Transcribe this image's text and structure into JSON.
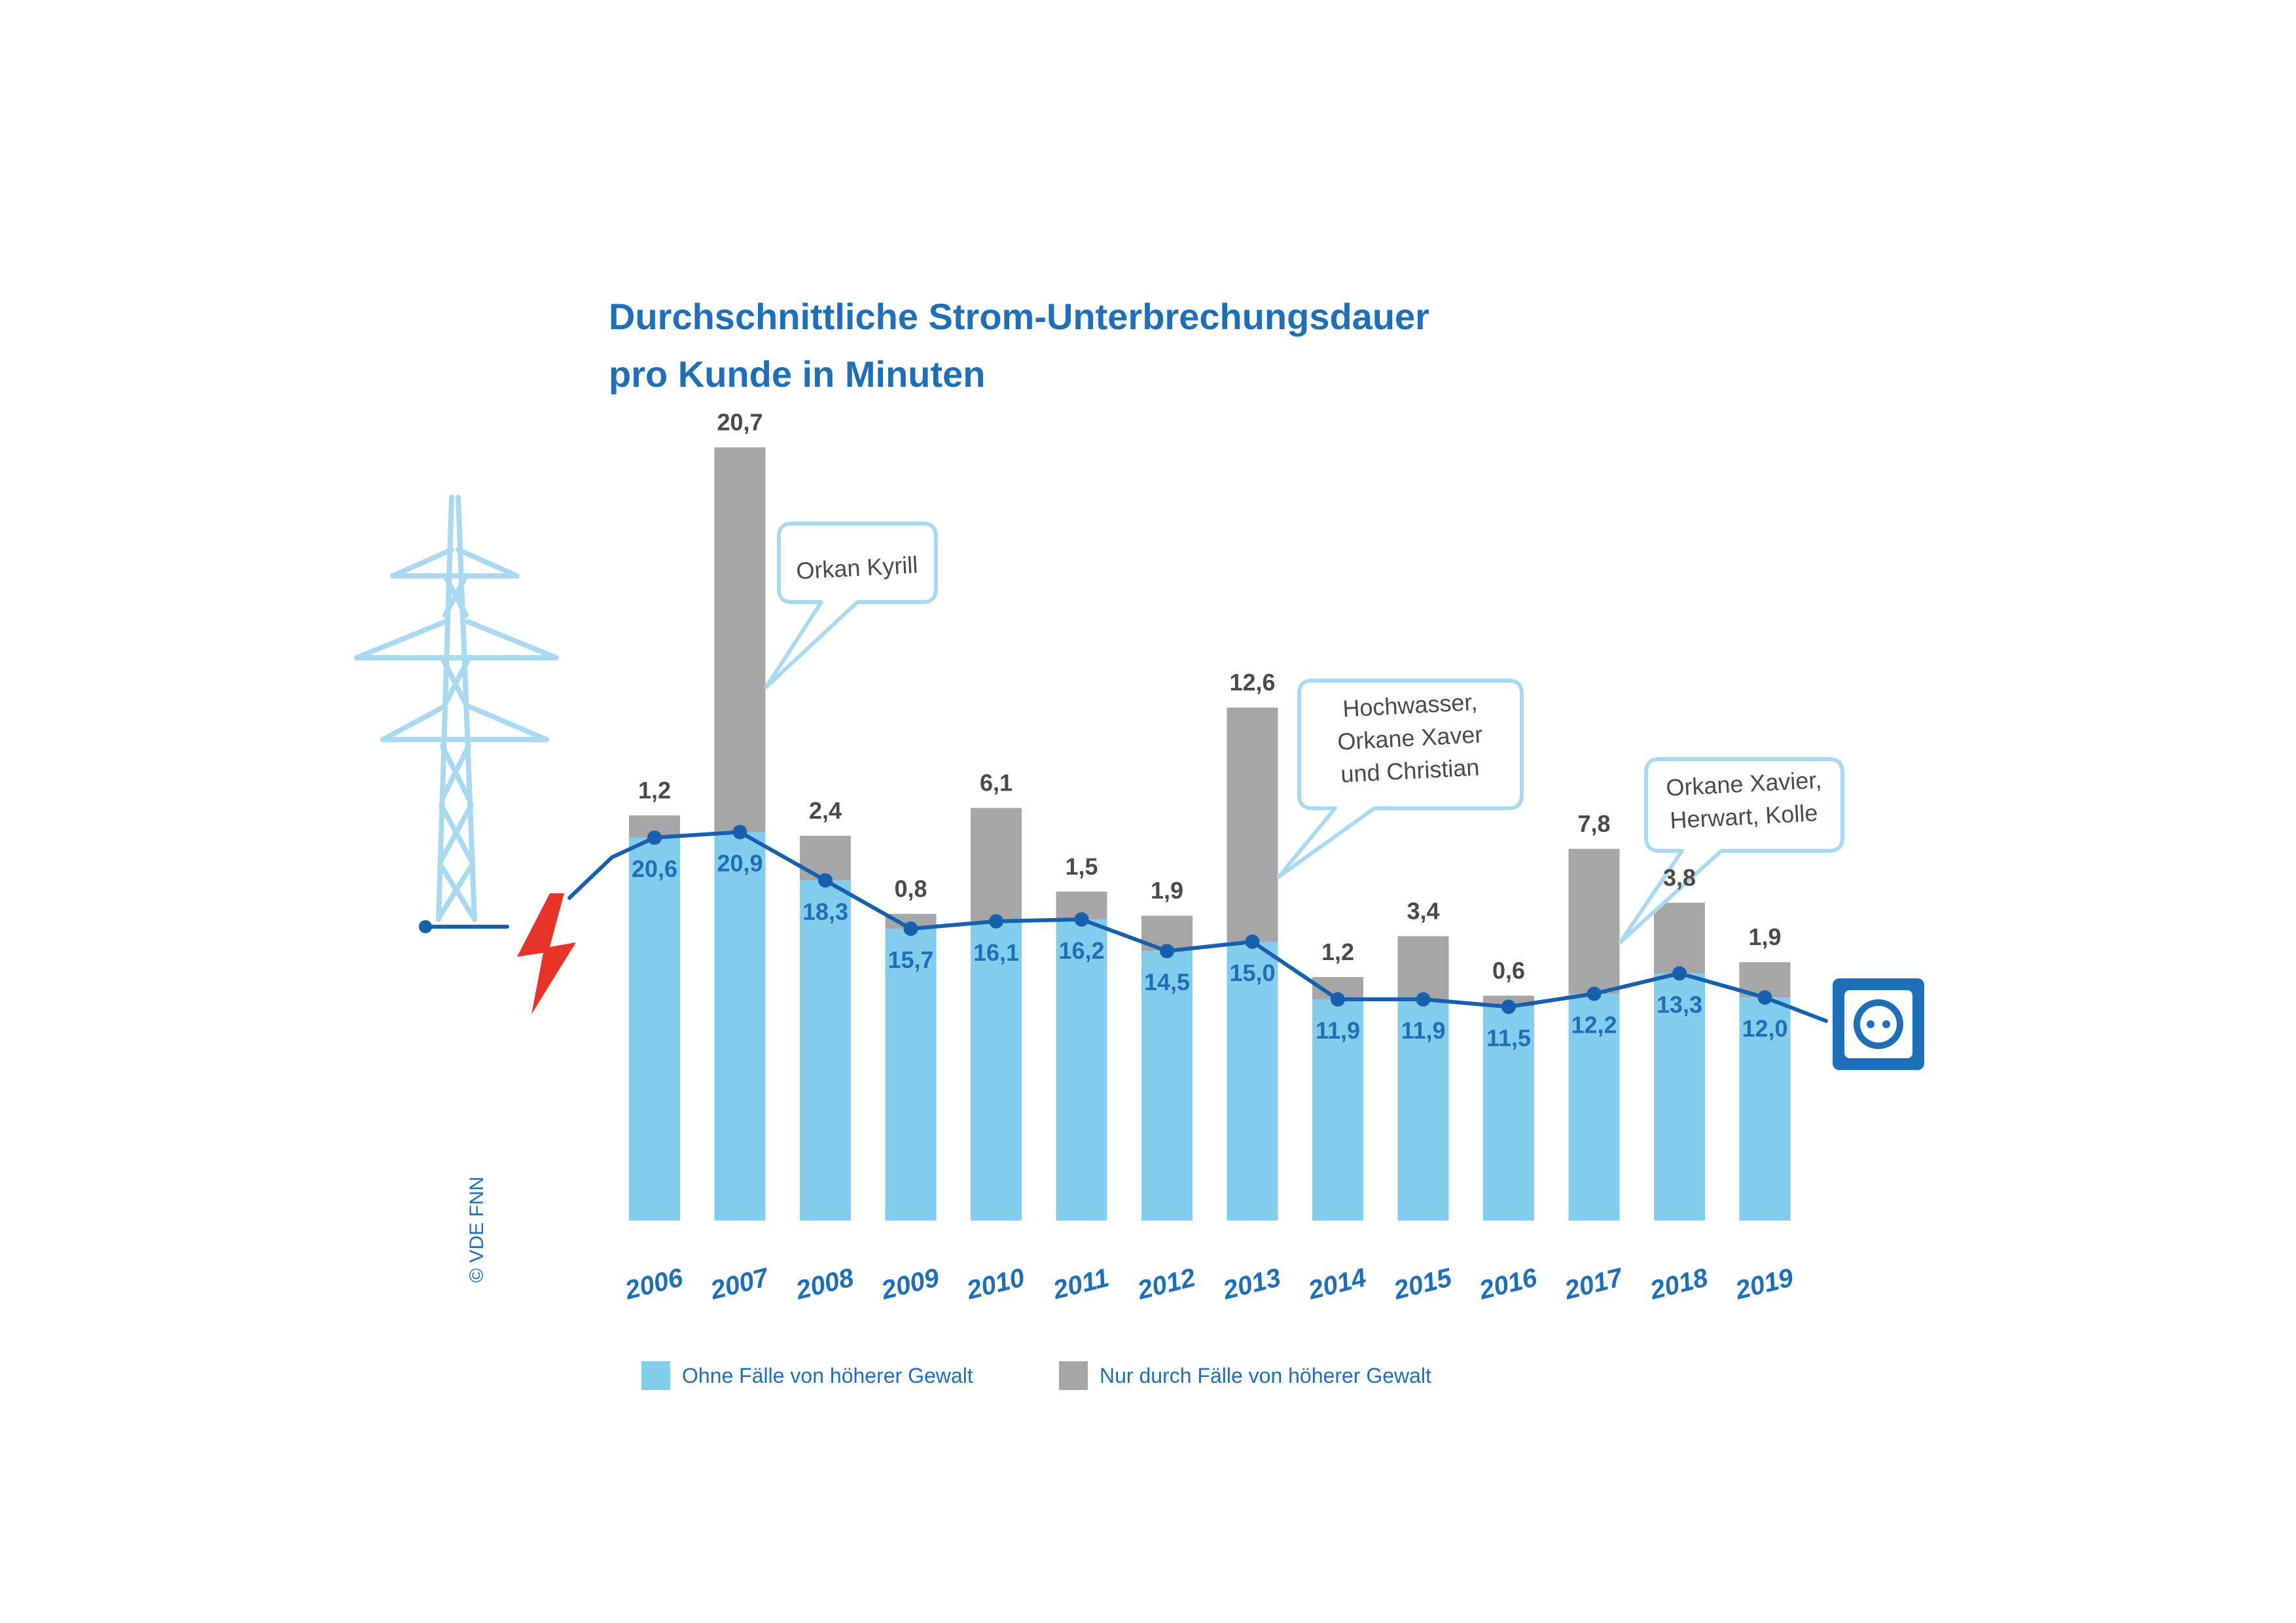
{
  "title": {
    "line1": "Durchschnittliche Strom-Unterbrechungsdauer",
    "line2": "pro Kunde in Minuten"
  },
  "colors": {
    "base_bar": "#82ccee",
    "force_majeure_bar": "#a6a6a6",
    "line": "#1660ad",
    "text_blue": "#1f6fb8",
    "label_grey": "#4a4a4a",
    "tower": "#a9d9f1",
    "lightning": "#e8332b",
    "socket": "#1f6fb8"
  },
  "icons": [
    "power-tower-icon",
    "lightning-icon",
    "power-socket-icon"
  ],
  "chart_data": {
    "type": "bar",
    "stacked": true,
    "categories": [
      "2006",
      "2007",
      "2008",
      "2009",
      "2010",
      "2011",
      "2012",
      "2013",
      "2014",
      "2015",
      "2016",
      "2017",
      "2018",
      "2019"
    ],
    "series": [
      {
        "name": "Ohne Fälle von höherer Gewalt",
        "values": [
          20.6,
          20.9,
          18.3,
          15.7,
          16.1,
          16.2,
          14.5,
          15.0,
          11.9,
          11.9,
          11.5,
          12.2,
          13.3,
          12.0
        ],
        "labels": [
          "20,6",
          "20,9",
          "18,3",
          "15,7",
          "16,1",
          "16,2",
          "14,5",
          "15,0",
          "11,9",
          "11,9",
          "11,5",
          "12,2",
          "13,3",
          "12,0"
        ]
      },
      {
        "name": "Nur durch Fälle von höherer Gewalt",
        "values": [
          1.2,
          20.7,
          2.4,
          0.8,
          6.1,
          1.5,
          1.9,
          12.6,
          1.2,
          3.4,
          0.6,
          7.8,
          3.8,
          1.9
        ],
        "labels": [
          "1,2",
          "20,7",
          "2,4",
          "0,8",
          "6,1",
          "1,5",
          "1,9",
          "12,6",
          "1,2",
          "3,4",
          "0,6",
          "7,8",
          "3,8",
          "1,9"
        ]
      }
    ],
    "ylim": [
      0,
      42
    ],
    "annotations": [
      {
        "category": "2007",
        "lines": [
          "Orkan Kyrill"
        ]
      },
      {
        "category": "2013",
        "lines": [
          "Hochwasser,",
          "Orkane Xaver",
          "und Christian"
        ]
      },
      {
        "category": "2017",
        "lines": [
          "Orkane Xavier,",
          "Herwart, Kolle"
        ]
      }
    ],
    "legend": "bottom-left",
    "grid": false
  },
  "legend": {
    "base_label": "Ohne Fälle von höherer Gewalt",
    "force_label": "Nur durch Fälle von höherer Gewalt"
  },
  "copyright": "© VDE FNN"
}
